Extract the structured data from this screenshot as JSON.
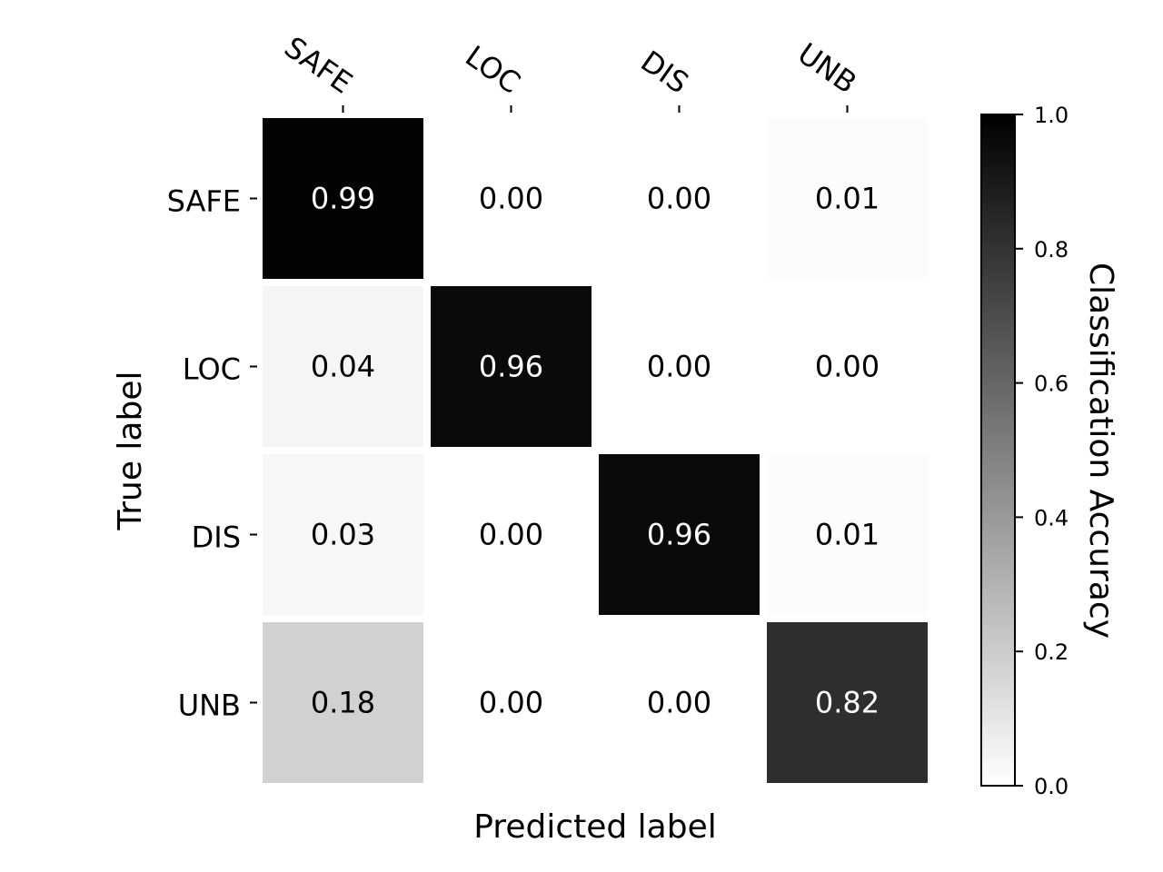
{
  "chart_data": {
    "type": "heatmap",
    "x_categories": [
      "SAFE",
      "LOC",
      "DIS",
      "UNB"
    ],
    "y_categories": [
      "SAFE",
      "LOC",
      "DIS",
      "UNB"
    ],
    "values": [
      [
        0.99,
        0.0,
        0.0,
        0.01
      ],
      [
        0.04,
        0.96,
        0.0,
        0.0
      ],
      [
        0.03,
        0.0,
        0.96,
        0.01
      ],
      [
        0.18,
        0.0,
        0.0,
        0.82
      ]
    ],
    "cell_labels": [
      [
        "0.99",
        "0.00",
        "0.00",
        "0.01"
      ],
      [
        "0.04",
        "0.96",
        "0.00",
        "0.00"
      ],
      [
        "0.03",
        "0.00",
        "0.96",
        "0.01"
      ],
      [
        "0.18",
        "0.00",
        "0.00",
        "0.82"
      ]
    ],
    "xlabel": "Predicted label",
    "ylabel": "True label",
    "colorbar": {
      "label": "Classification Accuracy",
      "range": [
        0,
        1
      ],
      "ticks": [
        "0.0",
        "0.2",
        "0.4",
        "0.6",
        "0.8",
        "1.0"
      ],
      "colormap": "greys",
      "low_color": "#ffffff",
      "high_color": "#000000"
    },
    "x_tick_position": "top"
  }
}
